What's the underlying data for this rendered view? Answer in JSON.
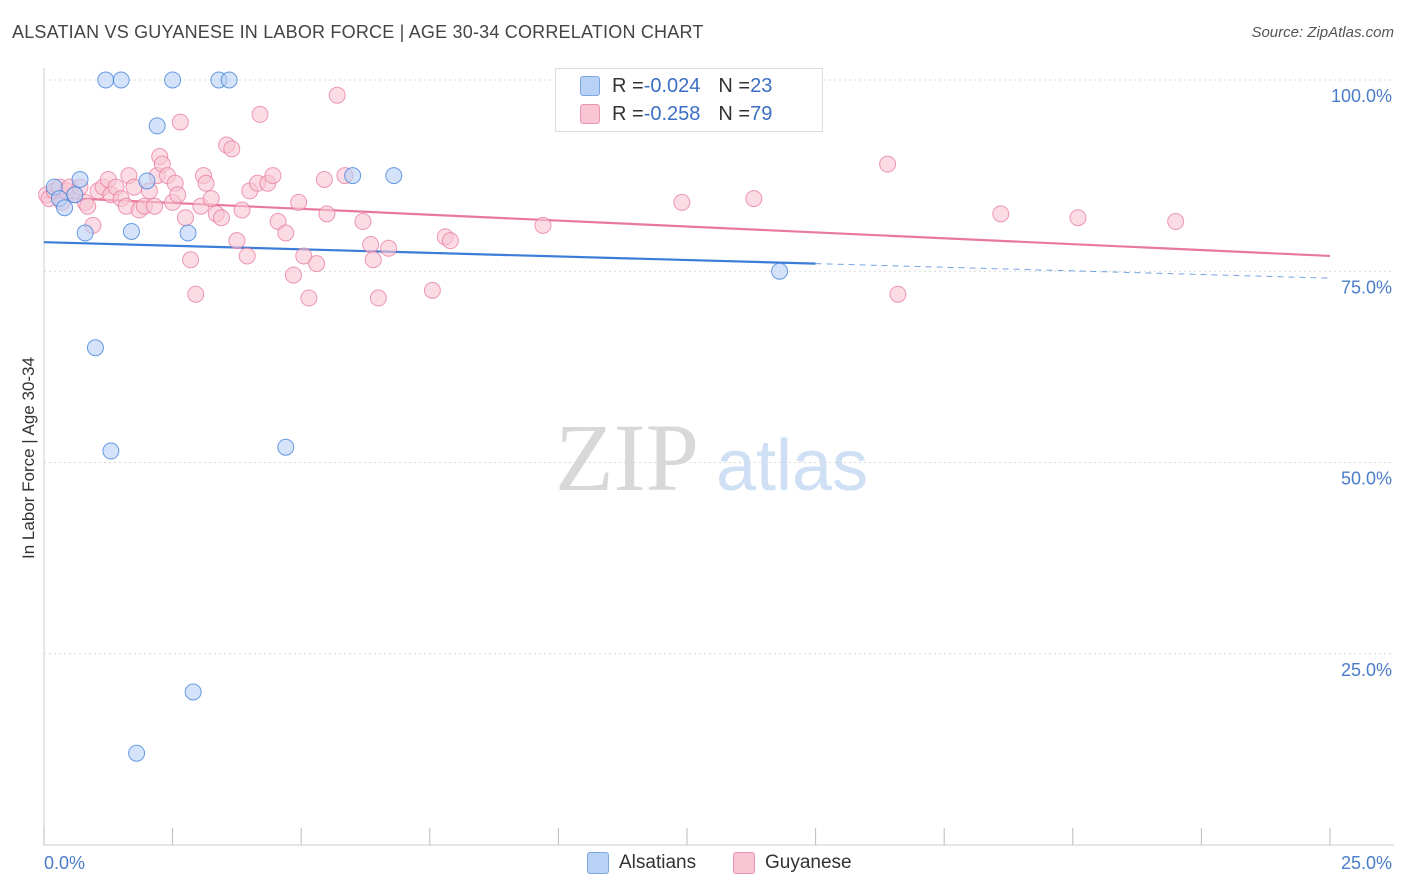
{
  "title": "ALSATIAN VS GUYANESE IN LABOR FORCE | AGE 30-34 CORRELATION CHART",
  "source": "Source: ZipAtlas.com",
  "watermark": {
    "zip": "ZIP",
    "atlas": "atlas"
  },
  "legend": {
    "rows": [
      {
        "r_label": "R = ",
        "r_value": "-0.024",
        "n_label": "N = ",
        "n_value": "23",
        "fill": "#b8d1f5",
        "stroke": "#7fa6e0"
      },
      {
        "r_label": "R = ",
        "r_value": "-0.258",
        "n_label": "N = ",
        "n_value": "79",
        "fill": "#f9c4d3",
        "stroke": "#eb96ae"
      }
    ]
  },
  "chart_data": {
    "type": "scatter",
    "title": "ALSATIAN VS GUYANESE IN LABOR FORCE | AGE 30-34 CORRELATION CHART",
    "xlabel": "",
    "ylabel": "In Labor Force | Age 30-34",
    "xlim": [
      0,
      25
    ],
    "ylim": [
      0,
      100
    ],
    "x_ticks": [
      0,
      2.5,
      5,
      7.5,
      10,
      12.5,
      15,
      17.5,
      20,
      22.5,
      25
    ],
    "x_tick_labels": {
      "0": "0.0%",
      "25": "25.0%"
    },
    "y_ticks": [
      25,
      50,
      75,
      100
    ],
    "y_tick_labels": [
      "25.0%",
      "50.0%",
      "75.0%",
      "100.0%"
    ],
    "grid": true,
    "legend_position": "bottom",
    "series": [
      {
        "name": "Alsatians",
        "color": "#3b7dd8",
        "fill": "#b8d1f5",
        "trend": {
          "x": [
            0,
            15
          ],
          "y": [
            78.8,
            76.0
          ],
          "dashed_to_x": 25,
          "dashed_y": 74.1
        },
        "points": [
          [
            0.2,
            86.0
          ],
          [
            0.3,
            84.5
          ],
          [
            0.4,
            83.3
          ],
          [
            0.6,
            85.0
          ],
          [
            0.7,
            87.0
          ],
          [
            0.8,
            80.0
          ],
          [
            1.0,
            65.0
          ],
          [
            1.2,
            100.0
          ],
          [
            1.3,
            51.5
          ],
          [
            1.5,
            100.0
          ],
          [
            1.7,
            80.2
          ],
          [
            1.8,
            12.0
          ],
          [
            2.0,
            86.8
          ],
          [
            2.2,
            94.0
          ],
          [
            2.5,
            100.0
          ],
          [
            2.8,
            80.0
          ],
          [
            2.9,
            20.0
          ],
          [
            3.4,
            100.0
          ],
          [
            3.6,
            100.0
          ],
          [
            4.7,
            52.0
          ],
          [
            6.0,
            87.5
          ],
          [
            6.8,
            87.5
          ],
          [
            14.3,
            75.0
          ]
        ]
      },
      {
        "name": "Guyanese",
        "color": "#e8789c",
        "fill": "#f9c4d3",
        "trend": {
          "x": [
            0,
            25
          ],
          "y": [
            84.7,
            77.0
          ]
        },
        "points": [
          [
            0.05,
            85.0
          ],
          [
            0.1,
            84.5
          ],
          [
            0.2,
            85.5
          ],
          [
            0.3,
            86.0
          ],
          [
            0.35,
            84.0
          ],
          [
            0.45,
            85.5
          ],
          [
            0.5,
            86.0
          ],
          [
            0.6,
            85.0
          ],
          [
            0.7,
            86.0
          ],
          [
            0.8,
            84.0
          ],
          [
            0.85,
            83.5
          ],
          [
            0.95,
            81.0
          ],
          [
            1.05,
            85.5
          ],
          [
            1.15,
            86.0
          ],
          [
            1.25,
            87.0
          ],
          [
            1.3,
            85.0
          ],
          [
            1.4,
            86.0
          ],
          [
            1.5,
            84.5
          ],
          [
            1.6,
            83.5
          ],
          [
            1.65,
            87.5
          ],
          [
            1.75,
            86.0
          ],
          [
            1.85,
            83.0
          ],
          [
            1.95,
            83.5
          ],
          [
            2.05,
            85.5
          ],
          [
            2.15,
            83.5
          ],
          [
            2.2,
            87.5
          ],
          [
            2.25,
            90.0
          ],
          [
            2.3,
            89.0
          ],
          [
            2.4,
            87.5
          ],
          [
            2.5,
            84.0
          ],
          [
            2.55,
            86.5
          ],
          [
            2.6,
            85.0
          ],
          [
            2.65,
            94.5
          ],
          [
            2.75,
            82.0
          ],
          [
            2.85,
            76.5
          ],
          [
            2.95,
            72.0
          ],
          [
            3.05,
            83.5
          ],
          [
            3.1,
            87.5
          ],
          [
            3.15,
            86.5
          ],
          [
            3.25,
            84.5
          ],
          [
            3.35,
            82.5
          ],
          [
            3.45,
            82.0
          ],
          [
            3.55,
            91.5
          ],
          [
            3.65,
            91.0
          ],
          [
            3.75,
            79.0
          ],
          [
            3.85,
            83.0
          ],
          [
            3.95,
            77.0
          ],
          [
            4.0,
            85.5
          ],
          [
            4.15,
            86.5
          ],
          [
            4.2,
            95.5
          ],
          [
            4.35,
            86.5
          ],
          [
            4.45,
            87.5
          ],
          [
            4.55,
            81.5
          ],
          [
            4.7,
            80.0
          ],
          [
            4.85,
            74.5
          ],
          [
            4.95,
            84.0
          ],
          [
            5.05,
            77.0
          ],
          [
            5.15,
            71.5
          ],
          [
            5.3,
            76.0
          ],
          [
            5.45,
            87.0
          ],
          [
            5.5,
            82.5
          ],
          [
            5.7,
            98.0
          ],
          [
            5.85,
            87.5
          ],
          [
            6.2,
            81.5
          ],
          [
            6.35,
            78.5
          ],
          [
            6.4,
            76.5
          ],
          [
            6.5,
            71.5
          ],
          [
            6.7,
            78.0
          ],
          [
            7.55,
            72.5
          ],
          [
            7.8,
            79.5
          ],
          [
            7.9,
            79.0
          ],
          [
            9.7,
            81.0
          ],
          [
            12.4,
            84.0
          ],
          [
            13.8,
            84.5
          ],
          [
            16.4,
            89.0
          ],
          [
            16.6,
            72.0
          ],
          [
            18.6,
            82.5
          ],
          [
            20.1,
            82.0
          ],
          [
            22.0,
            81.5
          ]
        ]
      }
    ]
  }
}
